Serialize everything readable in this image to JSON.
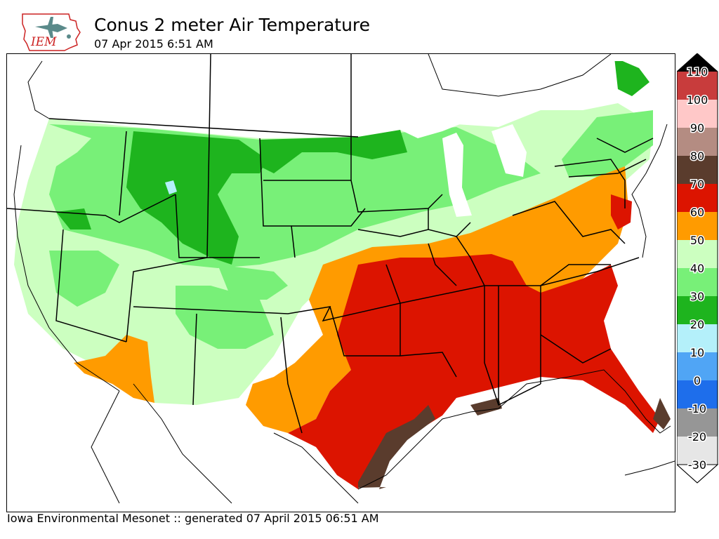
{
  "header": {
    "logo_text": "IEM",
    "title": "Conus 2 meter Air Temperature",
    "subtitle": "07 Apr 2015 6:51 AM"
  },
  "footer": {
    "text": "Iowa Environmental Mesonet :: generated 07 April 2015 06:51 AM"
  },
  "colorbar": {
    "bins": [
      {
        "label": "110",
        "color": "#c83c3c"
      },
      {
        "label": "100",
        "color": "#ffc8c8"
      },
      {
        "label": "90",
        "color": "#b48c82"
      },
      {
        "label": "80",
        "color": "#5a3c2d"
      },
      {
        "label": "70",
        "color": "#dc1400"
      },
      {
        "label": "60",
        "color": "#ff9b00"
      },
      {
        "label": "50",
        "color": "#ccffc0"
      },
      {
        "label": "40",
        "color": "#78f078"
      },
      {
        "label": "30",
        "color": "#1eb41e"
      },
      {
        "label": "20",
        "color": "#b4f0fa"
      },
      {
        "label": "10",
        "color": "#50a5f5"
      },
      {
        "label": "0",
        "color": "#1e6eeb"
      },
      {
        "label": "-10",
        "color": "#969696"
      },
      {
        "label": "-20",
        "color": "#e6e6e6"
      },
      {
        "label": "-30",
        "color": ""
      }
    ],
    "over_color": "#000000",
    "under_color": "#ffffff"
  },
  "map": {
    "colors": {
      "c50": "#ccffc0",
      "c40": "#78f078",
      "c30": "#1eb41e",
      "c20": "#b4f0fa",
      "c60": "#ff9b00",
      "c70": "#dc1400",
      "c80": "#5a3c2d",
      "ocean": "#ffffff",
      "border": "#000000"
    }
  }
}
